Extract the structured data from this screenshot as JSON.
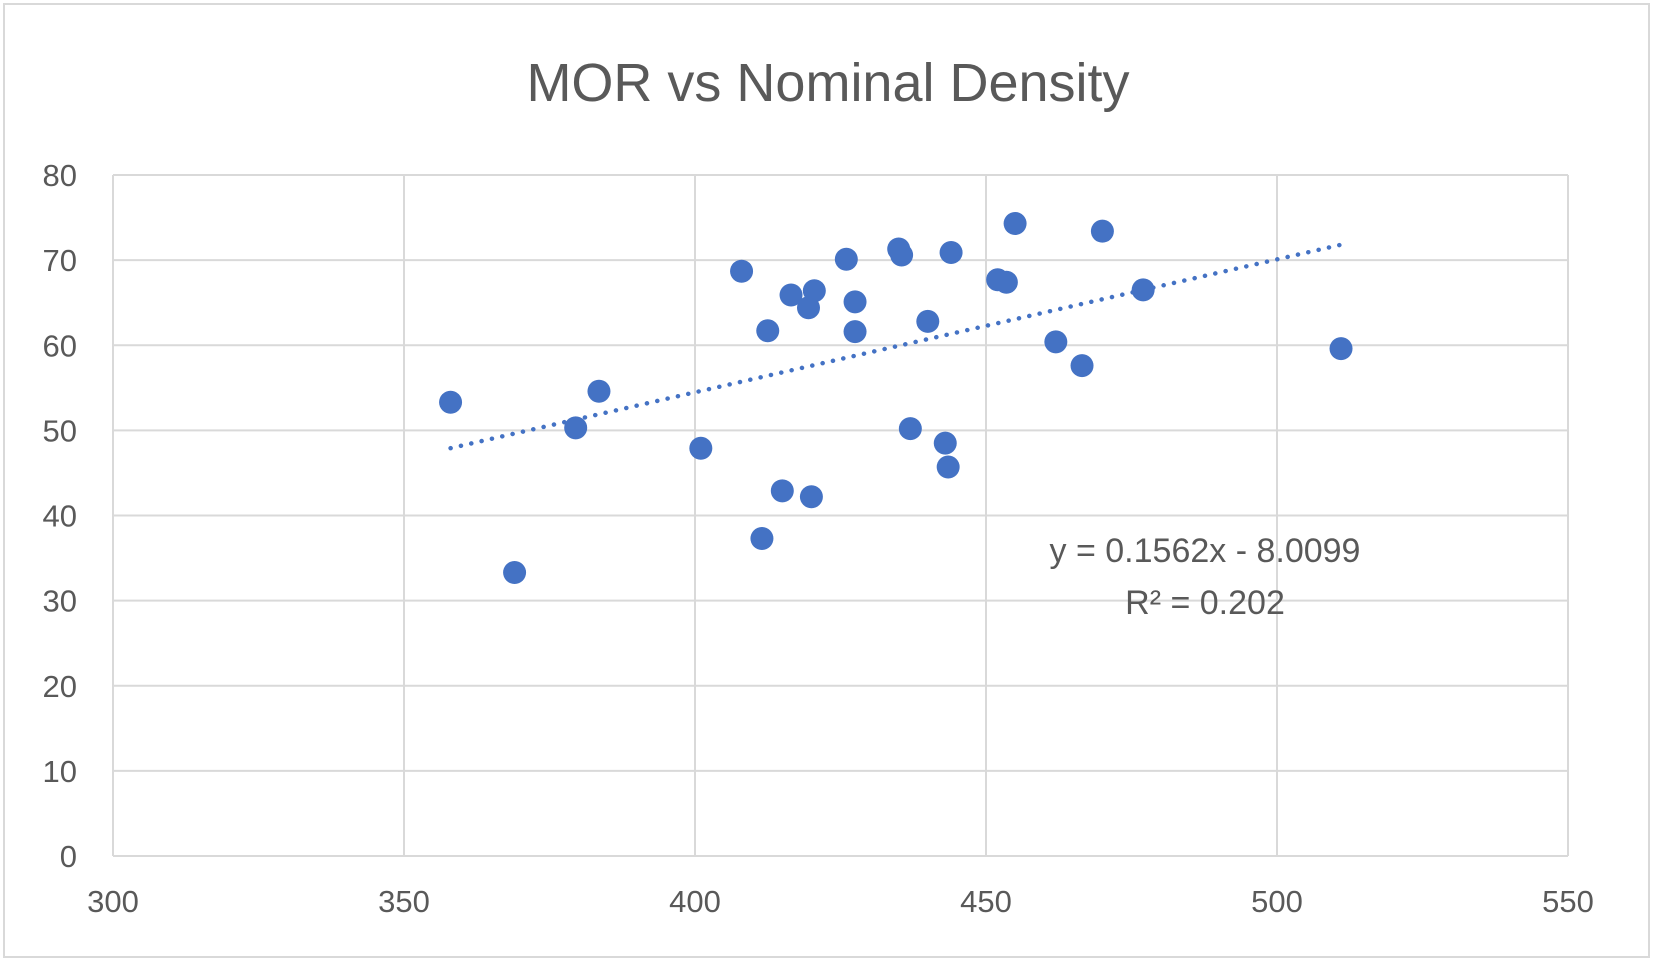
{
  "chart_data": {
    "type": "scatter",
    "title": "MOR vs Nominal Density",
    "xlabel": "",
    "ylabel": "",
    "xlim": [
      300,
      550
    ],
    "ylim": [
      0,
      80
    ],
    "x_ticks": [
      300,
      350,
      400,
      450,
      500,
      550
    ],
    "y_ticks": [
      0,
      10,
      20,
      30,
      40,
      50,
      60,
      70,
      80
    ],
    "grid": true,
    "legend": "none",
    "marker_color": "#4472C4",
    "trendline_color": "#4472C4",
    "series": [
      {
        "points": [
          [
            358,
            53.3
          ],
          [
            369,
            33.3
          ],
          [
            379.5,
            50.3
          ],
          [
            383.5,
            54.6
          ],
          [
            401,
            47.9
          ],
          [
            408,
            68.7
          ],
          [
            411.5,
            37.3
          ],
          [
            412.5,
            61.7
          ],
          [
            415,
            42.9
          ],
          [
            416.5,
            65.9
          ],
          [
            419.5,
            64.4
          ],
          [
            420,
            42.2
          ],
          [
            420.5,
            66.4
          ],
          [
            426,
            70.1
          ],
          [
            427.5,
            65.1
          ],
          [
            427.5,
            61.6
          ],
          [
            435,
            71.3
          ],
          [
            435.5,
            70.6
          ],
          [
            437,
            50.2
          ],
          [
            440,
            62.8
          ],
          [
            443,
            48.5
          ],
          [
            443.5,
            45.7
          ],
          [
            444,
            70.9
          ],
          [
            452,
            67.7
          ],
          [
            453.5,
            67.4
          ],
          [
            455,
            74.3
          ],
          [
            462,
            60.4
          ],
          [
            466.5,
            57.6
          ],
          [
            470,
            73.4
          ],
          [
            477,
            66.5
          ],
          [
            511,
            59.6
          ]
        ]
      }
    ],
    "trendline": {
      "type": "linear",
      "slope": 0.1562,
      "intercept": -8.0099,
      "x_range": [
        358,
        511
      ],
      "equation_label": "y = 0.1562x - 8.0099",
      "r2_label": "R² = 0.202"
    }
  }
}
